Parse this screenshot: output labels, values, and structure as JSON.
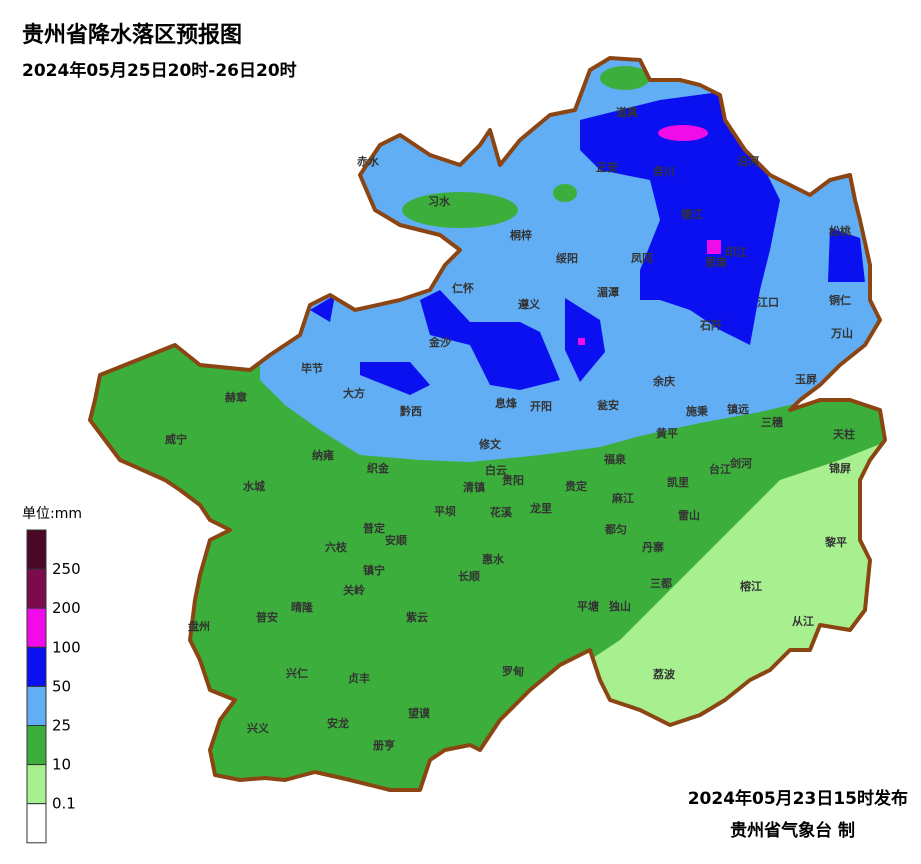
{
  "header": {
    "title": "贵州省降水落区预报图",
    "subtitle": "2024年05月25日20时-26日20时"
  },
  "legend": {
    "unit": "单位:mm",
    "labels": [
      "250",
      "200",
      "100",
      "50",
      "25",
      "10",
      "0.1"
    ],
    "colors": [
      "#4a0826",
      "#7e0a4e",
      "#f00ce8",
      "#0a10f0",
      "#62aef5",
      "#3cae3b",
      "#a8f08f",
      "#ffffff"
    ]
  },
  "places": [
    "道真",
    "赤水",
    "正安",
    "务川",
    "沿河",
    "习水",
    "德江",
    "松桃",
    "桐梓",
    "绥阳",
    "凤冈",
    "印江",
    "思南",
    "仁怀",
    "湄潭",
    "江口",
    "铜仁",
    "遵义",
    "石阡",
    "万山",
    "金沙",
    "毕节",
    "余庆",
    "玉屏",
    "大方",
    "黔西",
    "息烽",
    "开阳",
    "瓮安",
    "施秉",
    "镇远",
    "三穗",
    "威宁",
    "赫章",
    "纳雍",
    "织金",
    "修文",
    "黄平",
    "天柱",
    "剑河",
    "台江",
    "锦屏",
    "福泉",
    "白云",
    "清镇",
    "贵阳",
    "贵定",
    "凯里",
    "水城",
    "龙里",
    "麻江",
    "花溪",
    "平坝",
    "雷山",
    "都匀",
    "普定",
    "安顺",
    "六枝",
    "丹寨",
    "黎平",
    "惠水",
    "镇宁",
    "长顺",
    "三都",
    "关岭",
    "榕江",
    "平塘",
    "独山",
    "晴隆",
    "紫云",
    "普安",
    "盘州",
    "从江",
    "兴仁",
    "贞丰",
    "罗甸",
    "荔波",
    "望谟",
    "兴义",
    "安龙",
    "册亨"
  ],
  "footer": {
    "issued": "2024年05月23日15时发布",
    "maker": "贵州省气象台 制"
  }
}
